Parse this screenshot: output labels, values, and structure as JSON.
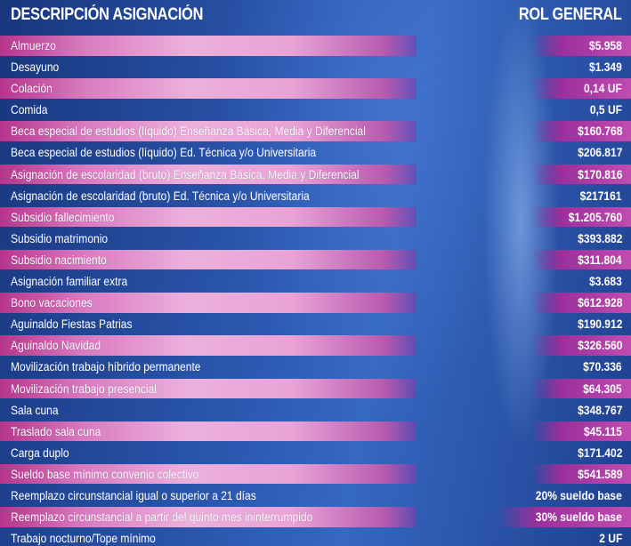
{
  "header": {
    "left": "DESCRIPCIÓN ASIGNACIÓN",
    "right": "ROL GENERAL"
  },
  "rows": [
    {
      "label": "Almuerzo",
      "value": "$5.958"
    },
    {
      "label": "Desayuno",
      "value": "$1.349"
    },
    {
      "label": "Colación",
      "value": "0,14 UF"
    },
    {
      "label": "Comida",
      "value": "0,5 UF"
    },
    {
      "label": "Beca especial de estudios (líquido) Enseñanza Básica, Media y Diferencial",
      "value": "$160.768"
    },
    {
      "label": "Beca especial de estudios (líquido) Ed. Técnica y/o Universitaria",
      "value": "$206.817"
    },
    {
      "label": "Asignación de escolaridad (bruto) Enseñanza Básica, Media y Diferencial",
      "value": "$170.816"
    },
    {
      "label": "Asignación de escolaridad (bruto) Ed. Técnica y/o Universitaria",
      "value": "$217161"
    },
    {
      "label": "Subsidio fallecimiento",
      "value": "$1.205.760"
    },
    {
      "label": "Subsidio matrimonio",
      "value": "$393.882"
    },
    {
      "label": "Subsidio nacimiento",
      "value": "$311.804"
    },
    {
      "label": "Asignación familiar extra",
      "value": "$3.683"
    },
    {
      "label": "Bono vacaciones",
      "value": "$612.928"
    },
    {
      "label": "Aguinaldo Fiestas Patrias",
      "value": "$190.912"
    },
    {
      "label": "Aguinaldo Navidad",
      "value": "$326.560"
    },
    {
      "label": "Movilización trabajo híbrido permanente",
      "value": "$70.336"
    },
    {
      "label": "Movilización trabajo presencial",
      "value": "$64.305"
    },
    {
      "label": "Sala cuna",
      "value": "$348.767"
    },
    {
      "label": "Traslado sala cuna",
      "value": "$45.115"
    },
    {
      "label": "Carga duplo",
      "value": "$171.402"
    },
    {
      "label": "Sueldo base mínimo convenio colectivo",
      "value": "$541.589"
    },
    {
      "label": "Reemplazo circunstancial igual o superior a 21 días",
      "value": "20% sueldo base"
    },
    {
      "label": "Reemplazo circunstancial a partir del quinto mes ininterrumpido",
      "value": "30% sueldo base"
    },
    {
      "label": "Trabajo nocturno/Tope mínimo",
      "value": "2 UF"
    }
  ]
}
